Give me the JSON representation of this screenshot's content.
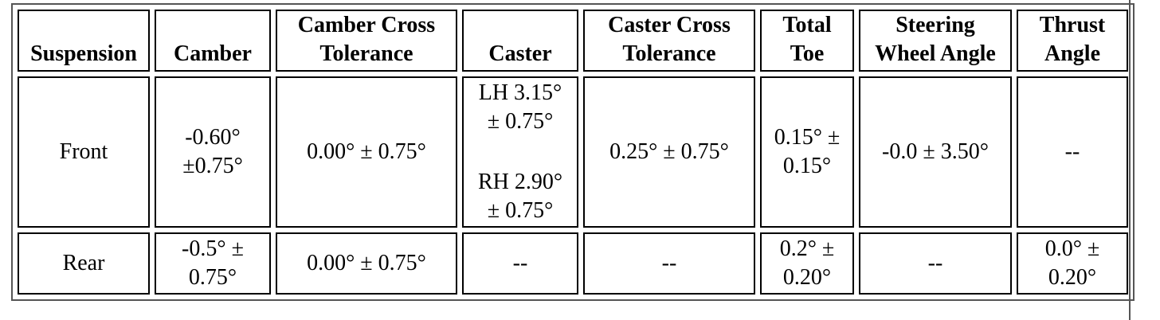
{
  "table": {
    "header": [
      [
        "Suspension"
      ],
      [
        "Camber"
      ],
      [
        "Camber Cross",
        "Tolerance"
      ],
      [
        "Caster"
      ],
      [
        "Caster Cross",
        "Tolerance"
      ],
      [
        "Total",
        "Toe"
      ],
      [
        "Steering",
        "Wheel Angle"
      ],
      [
        "Thrust",
        "Angle"
      ]
    ],
    "rows": [
      [
        [
          "Front"
        ],
        [
          "-0.60°",
          "±0.75°"
        ],
        [
          "0.00° ± 0.75°"
        ],
        [
          "LH 3.15°",
          "± 0.75°",
          "RH 2.90°",
          "± 0.75°"
        ],
        [
          "0.25° ± 0.75°"
        ],
        [
          "0.15° ±",
          "0.15°"
        ],
        [
          "-0.0 ± 3.50°"
        ],
        [
          "--"
        ]
      ],
      [
        [
          "Rear"
        ],
        [
          "-0.5° ±",
          "0.75°"
        ],
        [
          "0.00° ± 0.75°"
        ],
        [
          "--"
        ],
        [
          "--"
        ],
        [
          "0.2° ±",
          "0.20°"
        ],
        [
          "--"
        ],
        [
          "0.0° ±",
          "0.20°"
        ]
      ]
    ]
  }
}
